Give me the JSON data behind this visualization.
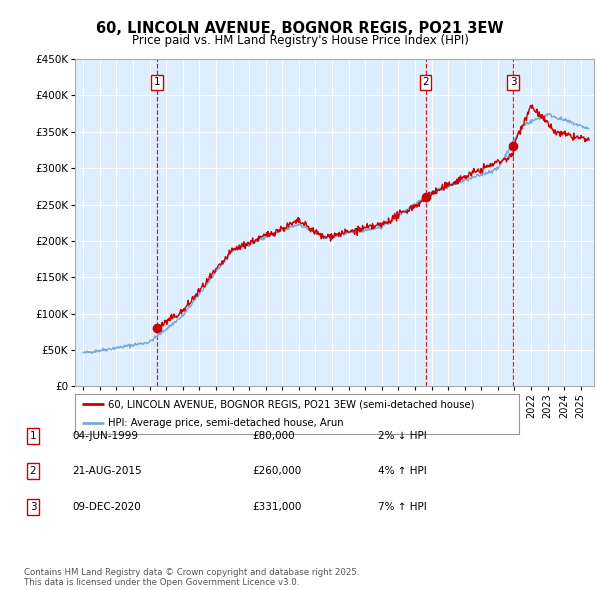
{
  "title": "60, LINCOLN AVENUE, BOGNOR REGIS, PO21 3EW",
  "subtitle": "Price paid vs. HM Land Registry's House Price Index (HPI)",
  "legend_line1": "60, LINCOLN AVENUE, BOGNOR REGIS, PO21 3EW (semi-detached house)",
  "legend_line2": "HPI: Average price, semi-detached house, Arun",
  "footer": "Contains HM Land Registry data © Crown copyright and database right 2025.\nThis data is licensed under the Open Government Licence v3.0.",
  "transactions": [
    {
      "num": 1,
      "date": "04-JUN-1999",
      "price": 80000,
      "pct": "2%",
      "dir": "↓",
      "year": 1999.43
    },
    {
      "num": 2,
      "date": "21-AUG-2015",
      "price": 260000,
      "pct": "4%",
      "dir": "↑",
      "year": 2015.64
    },
    {
      "num": 3,
      "date": "09-DEC-2020",
      "price": 331000,
      "pct": "7%",
      "dir": "↑",
      "year": 2020.94
    }
  ],
  "hpi_color": "#7aaadd",
  "price_color": "#cc0000",
  "vline_color": "#cc0000",
  "bg_color": "#ddeeff",
  "ylim": [
    0,
    450000
  ],
  "yticks": [
    0,
    50000,
    100000,
    150000,
    200000,
    250000,
    300000,
    350000,
    400000,
    450000
  ],
  "xlim_start": 1994.5,
  "xlim_end": 2025.8,
  "xticks": [
    1995,
    1996,
    1997,
    1998,
    1999,
    2000,
    2001,
    2002,
    2003,
    2004,
    2005,
    2006,
    2007,
    2008,
    2009,
    2010,
    2011,
    2012,
    2013,
    2014,
    2015,
    2016,
    2017,
    2018,
    2019,
    2020,
    2021,
    2022,
    2023,
    2024,
    2025
  ]
}
